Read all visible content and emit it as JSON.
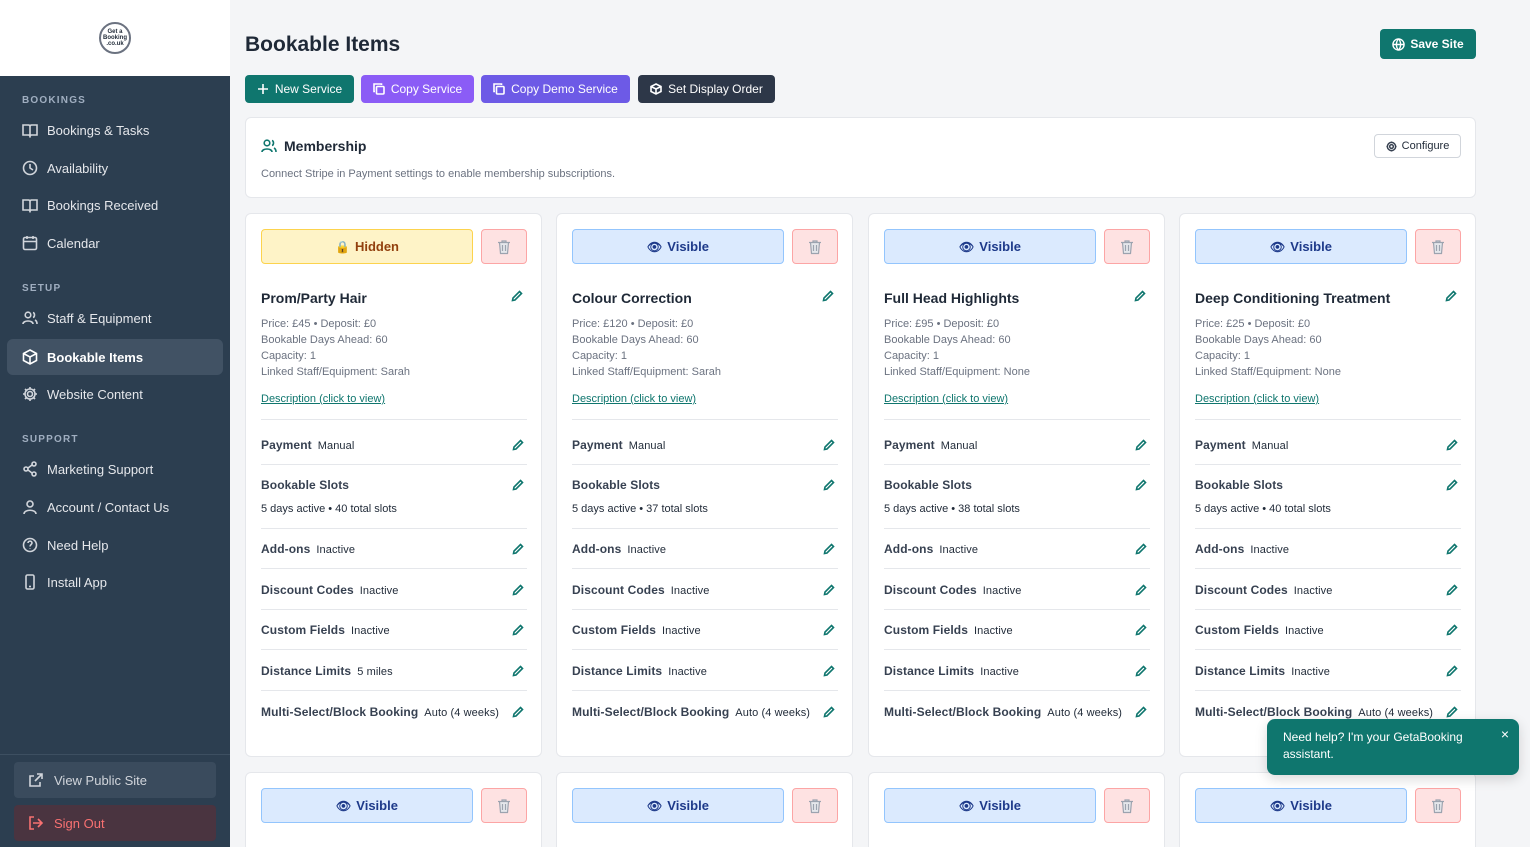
{
  "sidebar": {
    "logo_text": "Get a Booking .co.uk",
    "sections": {
      "bookings": "BOOKINGS",
      "setup": "SETUP",
      "support": "SUPPORT"
    },
    "items": [
      {
        "label": "Bookings & Tasks",
        "icon": "book-open-icon"
      },
      {
        "label": "Availability",
        "icon": "clock-icon"
      },
      {
        "label": "Bookings Received",
        "icon": "book-open-icon"
      },
      {
        "label": "Calendar",
        "icon": "calendar-icon"
      },
      {
        "label": "Staff & Equipment",
        "icon": "users-icon"
      },
      {
        "label": "Bookable Items",
        "icon": "box-icon"
      },
      {
        "label": "Website Content",
        "icon": "gear-icon"
      },
      {
        "label": "Marketing Support",
        "icon": "share-icon"
      },
      {
        "label": "Account / Contact Us",
        "icon": "user-icon"
      },
      {
        "label": "Need Help",
        "icon": "help-circle-icon"
      },
      {
        "label": "Install App",
        "icon": "smartphone-icon"
      }
    ],
    "view_public_site": "View Public Site",
    "sign_out": "Sign Out"
  },
  "header": {
    "title": "Bookable Items",
    "save_label": "Save Site"
  },
  "toolbar": {
    "new_service": "New Service",
    "copy_service": "Copy Service",
    "copy_demo_service": "Copy Demo Service",
    "set_display_order": "Set Display Order"
  },
  "membership": {
    "title": "Membership",
    "description": "Connect Stripe in Payment settings to enable membership subscriptions.",
    "configure_label": "Configure"
  },
  "row_labels": {
    "payment": "Payment",
    "bookable_slots": "Bookable Slots",
    "addons": "Add-ons",
    "discount_codes": "Discount Codes",
    "custom_fields": "Custom Fields",
    "distance_limits": "Distance Limits",
    "multi_select": "Multi-Select/Block Booking"
  },
  "cards": [
    {
      "visibility": "Hidden",
      "visibility_glyph": "🔒",
      "name": "Prom/Party Hair",
      "price_line": "Price: £45 • Deposit: £0",
      "days_ahead": "Bookable Days Ahead: 60",
      "capacity": "Capacity: 1",
      "linked": "Linked Staff/Equipment: Sarah",
      "description_link": "Description (click to view)",
      "payment": "Manual",
      "slots": "5 days active • 40 total slots",
      "addons": "Inactive",
      "discount_codes": "Inactive",
      "custom_fields": "Inactive",
      "distance_limits": "5 miles",
      "multi_select": "Auto (4 weeks)"
    },
    {
      "visibility": "Visible",
      "visibility_glyph": "👁",
      "name": "Colour Correction",
      "price_line": "Price: £120 • Deposit: £0",
      "days_ahead": "Bookable Days Ahead: 60",
      "capacity": "Capacity: 1",
      "linked": "Linked Staff/Equipment: Sarah",
      "description_link": "Description (click to view)",
      "payment": "Manual",
      "slots": "5 days active • 37 total slots",
      "addons": "Inactive",
      "discount_codes": "Inactive",
      "custom_fields": "Inactive",
      "distance_limits": "Inactive",
      "multi_select": "Auto (4 weeks)"
    },
    {
      "visibility": "Visible",
      "visibility_glyph": "👁",
      "name": "Full Head Highlights",
      "price_line": "Price: £95 • Deposit: £0",
      "days_ahead": "Bookable Days Ahead: 60",
      "capacity": "Capacity: 1",
      "linked": "Linked Staff/Equipment: None",
      "description_link": "Description (click to view)",
      "payment": "Manual",
      "slots": "5 days active • 38 total slots",
      "addons": "Inactive",
      "discount_codes": "Inactive",
      "custom_fields": "Inactive",
      "distance_limits": "Inactive",
      "multi_select": "Auto (4 weeks)"
    },
    {
      "visibility": "Visible",
      "visibility_glyph": "👁",
      "name": "Deep Conditioning Treatment",
      "price_line": "Price: £25 • Deposit: £0",
      "days_ahead": "Bookable Days Ahead: 60",
      "capacity": "Capacity: 1",
      "linked": "Linked Staff/Equipment: None",
      "description_link": "Description (click to view)",
      "payment": "Manual",
      "slots": "5 days active • 40 total slots",
      "addons": "Inactive",
      "discount_codes": "Inactive",
      "custom_fields": "Inactive",
      "distance_limits": "Inactive",
      "multi_select": "Auto (4 weeks)"
    }
  ],
  "second_row_cards": [
    {
      "visibility": "Visible",
      "visibility_glyph": "👁"
    },
    {
      "visibility": "Visible",
      "visibility_glyph": "👁"
    },
    {
      "visibility": "Visible",
      "visibility_glyph": "👁"
    },
    {
      "visibility": "Visible",
      "visibility_glyph": "👁"
    }
  ],
  "chat": {
    "message": "Need help? I'm your GetaBooking assistant.",
    "close": "×"
  },
  "colors": {
    "sidebar": "#2c3e50",
    "accent": "#0f766e",
    "purple": "#8b5cf6",
    "dark": "#2d3748"
  }
}
